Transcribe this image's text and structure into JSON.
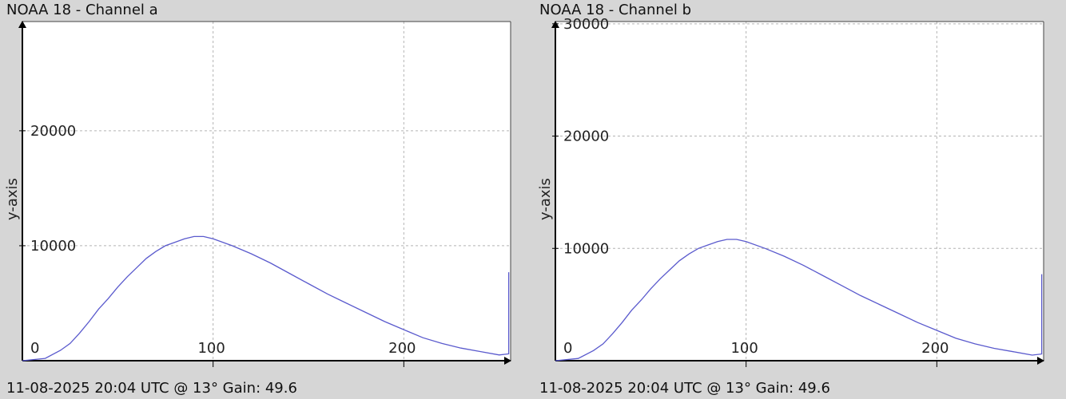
{
  "chart_data": [
    {
      "type": "line",
      "title": "NOAA 18 - Channel a",
      "footer": "11-08-2025 20:04 UTC @ 13° Gain: 49.6",
      "ylabel": "y-axis",
      "xlabel": "",
      "xlim": [
        0,
        256
      ],
      "ylim": [
        0,
        29500
      ],
      "xticks": [
        0,
        100,
        200
      ],
      "xtick_labels": [
        "0",
        "100",
        "200"
      ],
      "yticks": [
        10000,
        20000
      ],
      "ytick_labels": [
        "10000",
        "20000"
      ],
      "grid": true,
      "color": "#5a5acd",
      "series": [
        {
          "x": [
            0,
            12,
            20,
            25,
            30,
            35,
            40,
            45,
            50,
            55,
            60,
            65,
            70,
            75,
            80,
            85,
            90,
            95,
            100,
            110,
            120,
            130,
            140,
            150,
            160,
            170,
            180,
            190,
            200,
            210,
            220,
            230,
            240,
            250,
            255,
            255
          ],
          "values": [
            0,
            200,
            900,
            1500,
            2400,
            3400,
            4500,
            5400,
            6400,
            7300,
            8100,
            8900,
            9500,
            10000,
            10300,
            10600,
            10800,
            10800,
            10600,
            10000,
            9300,
            8500,
            7600,
            6700,
            5800,
            5000,
            4200,
            3400,
            2700,
            2000,
            1500,
            1100,
            800,
            500,
            600,
            7700
          ]
        }
      ]
    },
    {
      "type": "line",
      "title": "NOAA 18 - Channel b",
      "footer": "11-08-2025 20:04 UTC @ 13° Gain: 49.6",
      "ylabel": "y-axis",
      "xlabel": "",
      "xlim": [
        0,
        256
      ],
      "ylim": [
        0,
        30200
      ],
      "xticks": [
        0,
        100,
        200
      ],
      "xtick_labels": [
        "0",
        "100",
        "200"
      ],
      "yticks": [
        10000,
        20000,
        30000
      ],
      "ytick_labels": [
        "10000",
        "20000",
        "30000"
      ],
      "grid": true,
      "color": "#5a5acd",
      "series": [
        {
          "x": [
            0,
            12,
            20,
            25,
            30,
            35,
            40,
            45,
            50,
            55,
            60,
            65,
            70,
            75,
            80,
            85,
            90,
            95,
            100,
            110,
            120,
            130,
            140,
            150,
            160,
            170,
            180,
            190,
            200,
            210,
            220,
            230,
            240,
            250,
            255,
            255
          ],
          "values": [
            0,
            200,
            900,
            1500,
            2400,
            3400,
            4500,
            5400,
            6400,
            7300,
            8100,
            8900,
            9500,
            10000,
            10300,
            10600,
            10800,
            10800,
            10600,
            10000,
            9300,
            8500,
            7600,
            6700,
            5800,
            5000,
            4200,
            3400,
            2700,
            2000,
            1500,
            1100,
            800,
            500,
            600,
            7700
          ]
        }
      ]
    }
  ]
}
